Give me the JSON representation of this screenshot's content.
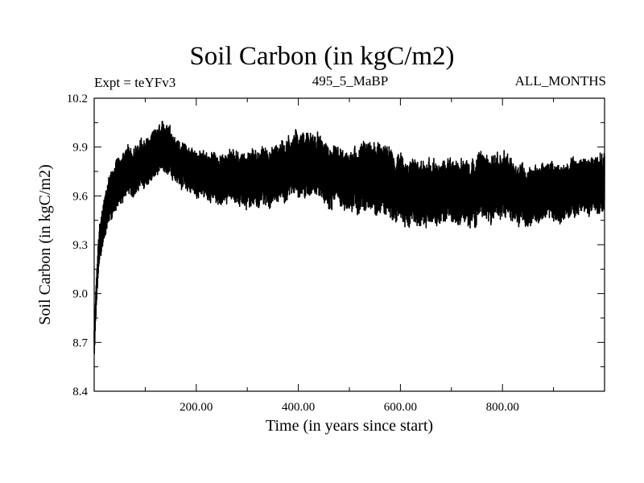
{
  "header": {
    "title": "Soil Carbon (in kgC/m2)",
    "experiment": "Expt = teYFv3",
    "period": "495_5_MaBP",
    "season": "ALL_MONTHS"
  },
  "chart_data": {
    "type": "line",
    "title": "Soil Carbon (in kgC/m2)",
    "xlabel": "Time (in years since start)",
    "ylabel": "Soil Carbon (in kgC/m2)",
    "xlim": [
      0,
      1000
    ],
    "ylim": [
      8.4,
      10.2
    ],
    "x_ticks": [
      200,
      400,
      600,
      800
    ],
    "x_tick_labels": [
      "200.00",
      "400.00",
      "600.00",
      "800.00"
    ],
    "y_ticks": [
      8.4,
      8.7,
      9.0,
      9.3,
      9.6,
      9.9,
      10.2
    ],
    "y_tick_labels": [
      "8.4",
      "8.7",
      "9.0",
      "9.3",
      "9.6",
      "9.9",
      "10.2"
    ],
    "grid": false,
    "series": [
      {
        "name": "Soil Carbon",
        "note": "noisy annual-cycle signal; band of lower/upper envelope",
        "x": [
          0,
          5,
          10,
          20,
          30,
          50,
          70,
          100,
          130,
          145,
          160,
          200,
          250,
          300,
          350,
          400,
          430,
          470,
          500,
          550,
          600,
          650,
          700,
          750,
          800,
          850,
          900,
          950,
          1000
        ],
        "lower": [
          8.6,
          8.95,
          9.15,
          9.35,
          9.45,
          9.55,
          9.6,
          9.65,
          9.72,
          9.75,
          9.68,
          9.6,
          9.55,
          9.53,
          9.55,
          9.62,
          9.6,
          9.52,
          9.5,
          9.5,
          9.45,
          9.42,
          9.44,
          9.45,
          9.46,
          9.43,
          9.45,
          9.48,
          9.52
        ],
        "upper": [
          8.8,
          9.15,
          9.4,
          9.6,
          9.75,
          9.85,
          9.9,
          9.95,
          10.02,
          10.07,
          9.95,
          9.88,
          9.85,
          9.87,
          9.9,
          10.0,
          9.98,
          9.88,
          9.85,
          9.95,
          9.85,
          9.8,
          9.82,
          9.85,
          9.85,
          9.78,
          9.8,
          9.82,
          9.87
        ]
      }
    ]
  }
}
